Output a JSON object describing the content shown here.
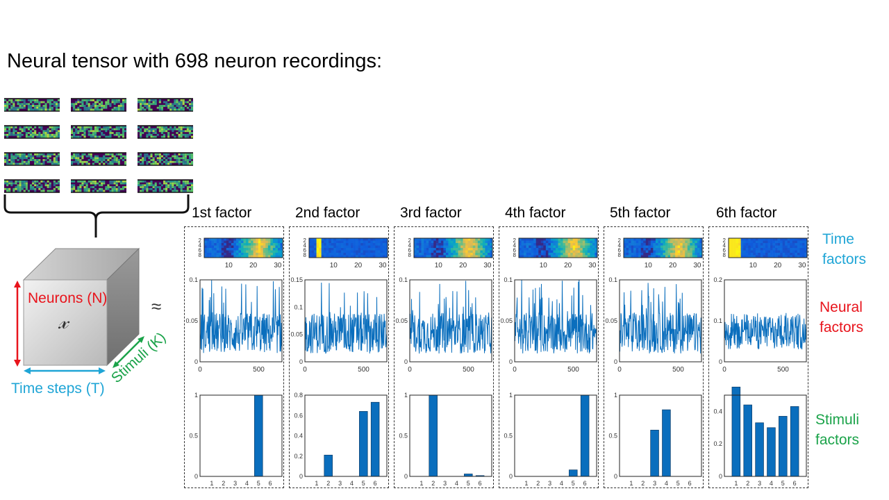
{
  "title": "Neural tensor with 698 neuron recordings:",
  "cube": {
    "neurons_label": "Neurons (N)",
    "tensor_symbol": "𝓍",
    "time_label": "Time steps (T)",
    "stimuli_label": "Stimuli (K)"
  },
  "approx_symbol": "≈",
  "side_labels": {
    "time": [
      "Time",
      "factors"
    ],
    "neural": [
      "Neural",
      "factors"
    ],
    "stimuli": [
      "Stimuli",
      "factors"
    ]
  },
  "colors": {
    "neurons": "#e8141c",
    "time": "#1fa5d6",
    "stimuli": "#1ba34a",
    "bar": "#0a6ebd"
  },
  "factors": [
    {
      "title": "1st factor",
      "time_peak": "late",
      "neural": {
        "ylim": [
          0,
          0.1
        ],
        "yticks": [
          "0.1",
          "0.05",
          "0"
        ],
        "xticks": [
          "0",
          "500"
        ]
      },
      "stimuli": {
        "ylim": [
          0,
          1
        ],
        "yticks": [
          "1",
          "0.5",
          "0"
        ],
        "values": [
          0,
          0,
          0,
          0,
          1.0,
          0
        ]
      }
    },
    {
      "title": "2nd factor",
      "time_peak": "early",
      "neural": {
        "ylim": [
          0,
          0.15
        ],
        "yticks": [
          "0.15",
          "0.1",
          "0.05",
          "0"
        ],
        "xticks": [
          "0",
          "500"
        ]
      },
      "stimuli": {
        "ylim": [
          0,
          0.8
        ],
        "yticks": [
          "0.8",
          "0.6",
          "0.4",
          "0.2",
          "0"
        ],
        "values": [
          0,
          0.21,
          0,
          0,
          0.64,
          0.73
        ]
      }
    },
    {
      "title": "3rd factor",
      "time_peak": "late",
      "neural": {
        "ylim": [
          0,
          0.1
        ],
        "yticks": [
          "0.1",
          "0.05",
          "0"
        ],
        "xticks": [
          "0",
          "500"
        ]
      },
      "stimuli": {
        "ylim": [
          0,
          1
        ],
        "yticks": [
          "1",
          "0.5",
          "0"
        ],
        "values": [
          0,
          1.0,
          0,
          0,
          0.03,
          0.01
        ]
      }
    },
    {
      "title": "4th factor",
      "time_peak": "late",
      "neural": {
        "ylim": [
          0,
          0.1
        ],
        "yticks": [
          "0.1",
          "0.05",
          "0"
        ],
        "xticks": [
          "0",
          "500"
        ]
      },
      "stimuli": {
        "ylim": [
          0,
          1
        ],
        "yticks": [
          "1",
          "0.5",
          "0"
        ],
        "values": [
          0,
          0,
          0,
          0,
          0.08,
          1.0
        ]
      }
    },
    {
      "title": "5th factor",
      "time_peak": "late",
      "neural": {
        "ylim": [
          0,
          0.1
        ],
        "yticks": [
          "0.1",
          "0.05",
          "0"
        ],
        "xticks": [
          "0",
          "500"
        ]
      },
      "stimuli": {
        "ylim": [
          0,
          1
        ],
        "yticks": [
          "1",
          "0.5",
          "0"
        ],
        "values": [
          0,
          0,
          0.57,
          0.82,
          0,
          0
        ]
      }
    },
    {
      "title": "6th factor",
      "time_peak": "early",
      "neural": {
        "ylim": [
          0,
          0.2
        ],
        "yticks": [
          "0.2",
          "0.1",
          "0"
        ],
        "xticks": [
          "0",
          "500"
        ]
      },
      "stimuli": {
        "ylim": [
          0,
          0.5
        ],
        "yticks": [
          "0.4",
          "0.2",
          "0"
        ],
        "values": [
          0.55,
          0.44,
          0.33,
          0.3,
          0.37,
          0.43
        ]
      }
    }
  ],
  "heatmap_axis": {
    "yticks": [
      "2",
      "4",
      "6",
      "8"
    ],
    "xticks": [
      "10",
      "20",
      "30"
    ]
  },
  "stim_xticks": [
    "1",
    "2",
    "3",
    "4",
    "5",
    "6"
  ]
}
